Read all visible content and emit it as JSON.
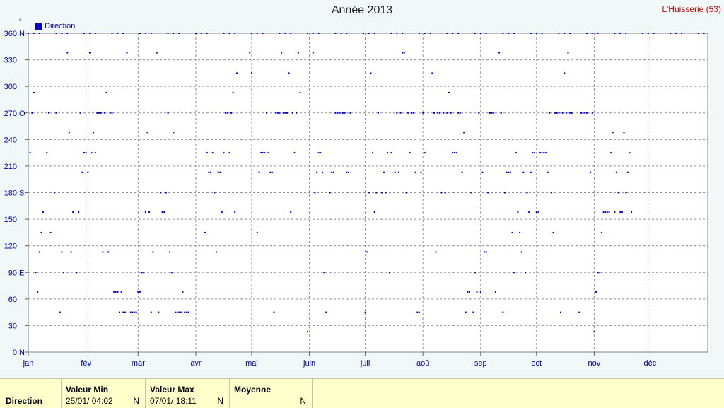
{
  "header": {
    "title": "Année 2013",
    "station": "L'Huisserie (53)",
    "unit_symbol": "°"
  },
  "legend": {
    "label": "Direction",
    "color": "#0000cc"
  },
  "footer": {
    "row_label": "Direction",
    "min": {
      "header": "Valeur Min",
      "date": "25/01/  04:02",
      "dir": "N"
    },
    "max": {
      "header": "Valeur Max",
      "date": "07/01/  18:11",
      "dir": "N"
    },
    "avg": {
      "header": "Moyenne",
      "dir": "N"
    }
  },
  "chart_data": {
    "type": "scatter",
    "title": "Année 2013",
    "series": [
      {
        "name": "Direction",
        "color": "#0000cc"
      }
    ],
    "ylim": [
      0,
      360
    ],
    "yticks": [
      {
        "value": 0,
        "label": "0",
        "dir": "N"
      },
      {
        "value": 30,
        "label": "30",
        "dir": ""
      },
      {
        "value": 60,
        "label": "60",
        "dir": ""
      },
      {
        "value": 90,
        "label": "90",
        "dir": "E"
      },
      {
        "value": 120,
        "label": "120",
        "dir": ""
      },
      {
        "value": 150,
        "label": "150",
        "dir": ""
      },
      {
        "value": 180,
        "label": "180",
        "dir": "S"
      },
      {
        "value": 210,
        "label": "210",
        "dir": ""
      },
      {
        "value": 240,
        "label": "240",
        "dir": ""
      },
      {
        "value": 270,
        "label": "270",
        "dir": "O"
      },
      {
        "value": 300,
        "label": "300",
        "dir": ""
      },
      {
        "value": 330,
        "label": "330",
        "dir": ""
      },
      {
        "value": 360,
        "label": "360",
        "dir": "N"
      }
    ],
    "xlim": [
      0,
      365
    ],
    "months": [
      "jan",
      "fév",
      "mar",
      "avr",
      "mai",
      "juin",
      "juil",
      "aoû",
      "sep",
      "oct",
      "nov",
      "déc"
    ],
    "month_starts": [
      0,
      31,
      59,
      90,
      120,
      151,
      181,
      212,
      243,
      273,
      304,
      334
    ],
    "grid": true,
    "points": [
      [
        1,
        225
      ],
      [
        2,
        270
      ],
      [
        3,
        293
      ],
      [
        4,
        90
      ],
      [
        5,
        68
      ],
      [
        6,
        113
      ],
      [
        7,
        135
      ],
      [
        8,
        158
      ],
      [
        10,
        225
      ],
      [
        11,
        270
      ],
      [
        12,
        135
      ],
      [
        14,
        180
      ],
      [
        15,
        270
      ],
      [
        17,
        45
      ],
      [
        18,
        113
      ],
      [
        19,
        90
      ],
      [
        21,
        338
      ],
      [
        22,
        248
      ],
      [
        23,
        113
      ],
      [
        24,
        158
      ],
      [
        26,
        90
      ],
      [
        27,
        158
      ],
      [
        28,
        270
      ],
      [
        29,
        203
      ],
      [
        30,
        225
      ],
      [
        31,
        225
      ],
      [
        32,
        203
      ],
      [
        33,
        338
      ],
      [
        34,
        225
      ],
      [
        35,
        248
      ],
      [
        36,
        225
      ],
      [
        37,
        270
      ],
      [
        38,
        270
      ],
      [
        39,
        270
      ],
      [
        40,
        113
      ],
      [
        41,
        270
      ],
      [
        42,
        293
      ],
      [
        43,
        113
      ],
      [
        44,
        270
      ],
      [
        45,
        270
      ],
      [
        46,
        68
      ],
      [
        47,
        68
      ],
      [
        48,
        68
      ],
      [
        49,
        45
      ],
      [
        50,
        68
      ],
      [
        51,
        45
      ],
      [
        52,
        45
      ],
      [
        53,
        338
      ],
      [
        55,
        45
      ],
      [
        56,
        45
      ],
      [
        57,
        45
      ],
      [
        58,
        45
      ],
      [
        59,
        68
      ],
      [
        60,
        68
      ],
      [
        61,
        90
      ],
      [
        62,
        90
      ],
      [
        63,
        158
      ],
      [
        64,
        248
      ],
      [
        65,
        158
      ],
      [
        66,
        45
      ],
      [
        67,
        113
      ],
      [
        69,
        338
      ],
      [
        70,
        45
      ],
      [
        71,
        180
      ],
      [
        72,
        158
      ],
      [
        73,
        158
      ],
      [
        74,
        180
      ],
      [
        75,
        270
      ],
      [
        76,
        113
      ],
      [
        77,
        90
      ],
      [
        78,
        248
      ],
      [
        79,
        45
      ],
      [
        80,
        45
      ],
      [
        81,
        45
      ],
      [
        82,
        45
      ],
      [
        83,
        68
      ],
      [
        84,
        45
      ],
      [
        85,
        45
      ],
      [
        86,
        45
      ],
      [
        95,
        135
      ],
      [
        96,
        225
      ],
      [
        97,
        203
      ],
      [
        98,
        203
      ],
      [
        99,
        225
      ],
      [
        100,
        180
      ],
      [
        101,
        113
      ],
      [
        102,
        203
      ],
      [
        103,
        203
      ],
      [
        104,
        158
      ],
      [
        105,
        225
      ],
      [
        106,
        270
      ],
      [
        107,
        270
      ],
      [
        108,
        225
      ],
      [
        109,
        270
      ],
      [
        110,
        293
      ],
      [
        111,
        158
      ],
      [
        112,
        315
      ],
      [
        119,
        338
      ],
      [
        120,
        315
      ],
      [
        123,
        135
      ],
      [
        124,
        203
      ],
      [
        125,
        225
      ],
      [
        126,
        225
      ],
      [
        127,
        225
      ],
      [
        128,
        270
      ],
      [
        129,
        225
      ],
      [
        130,
        203
      ],
      [
        131,
        203
      ],
      [
        132,
        45
      ],
      [
        133,
        270
      ],
      [
        134,
        270
      ],
      [
        135,
        270
      ],
      [
        136,
        338
      ],
      [
        137,
        270
      ],
      [
        138,
        270
      ],
      [
        139,
        270
      ],
      [
        140,
        315
      ],
      [
        141,
        158
      ],
      [
        142,
        270
      ],
      [
        143,
        225
      ],
      [
        144,
        270
      ],
      [
        145,
        338
      ],
      [
        146,
        293
      ],
      [
        150,
        23
      ],
      [
        153,
        338
      ],
      [
        154,
        180
      ],
      [
        155,
        203
      ],
      [
        156,
        225
      ],
      [
        157,
        225
      ],
      [
        158,
        203
      ],
      [
        159,
        90
      ],
      [
        160,
        45
      ],
      [
        162,
        180
      ],
      [
        163,
        203
      ],
      [
        164,
        203
      ],
      [
        165,
        270
      ],
      [
        166,
        270
      ],
      [
        167,
        270
      ],
      [
        168,
        270
      ],
      [
        169,
        270
      ],
      [
        170,
        270
      ],
      [
        171,
        203
      ],
      [
        172,
        203
      ],
      [
        173,
        270
      ],
      [
        181,
        45
      ],
      [
        182,
        113
      ],
      [
        183,
        180
      ],
      [
        184,
        315
      ],
      [
        185,
        225
      ],
      [
        186,
        158
      ],
      [
        187,
        180
      ],
      [
        188,
        270
      ],
      [
        190,
        180
      ],
      [
        191,
        203
      ],
      [
        192,
        180
      ],
      [
        193,
        225
      ],
      [
        194,
        90
      ],
      [
        195,
        225
      ],
      [
        197,
        203
      ],
      [
        198,
        270
      ],
      [
        199,
        203
      ],
      [
        200,
        270
      ],
      [
        201,
        338
      ],
      [
        202,
        338
      ],
      [
        203,
        180
      ],
      [
        204,
        270
      ],
      [
        205,
        225
      ],
      [
        206,
        270
      ],
      [
        207,
        270
      ],
      [
        208,
        203
      ],
      [
        209,
        45
      ],
      [
        210,
        45
      ],
      [
        211,
        203
      ],
      [
        212,
        270
      ],
      [
        213,
        225
      ],
      [
        217,
        315
      ],
      [
        218,
        270
      ],
      [
        219,
        113
      ],
      [
        220,
        270
      ],
      [
        221,
        270
      ],
      [
        222,
        180
      ],
      [
        223,
        270
      ],
      [
        224,
        180
      ],
      [
        225,
        270
      ],
      [
        226,
        293
      ],
      [
        227,
        270
      ],
      [
        228,
        225
      ],
      [
        229,
        225
      ],
      [
        230,
        225
      ],
      [
        231,
        270
      ],
      [
        232,
        270
      ],
      [
        233,
        203
      ],
      [
        234,
        248
      ],
      [
        235,
        45
      ],
      [
        236,
        68
      ],
      [
        237,
        68
      ],
      [
        238,
        180
      ],
      [
        239,
        45
      ],
      [
        240,
        90
      ],
      [
        241,
        68
      ],
      [
        242,
        270
      ],
      [
        243,
        68
      ],
      [
        244,
        203
      ],
      [
        245,
        113
      ],
      [
        246,
        113
      ],
      [
        247,
        180
      ],
      [
        248,
        270
      ],
      [
        249,
        270
      ],
      [
        250,
        270
      ],
      [
        251,
        68
      ],
      [
        253,
        338
      ],
      [
        254,
        270
      ],
      [
        255,
        45
      ],
      [
        256,
        180
      ],
      [
        257,
        203
      ],
      [
        258,
        203
      ],
      [
        259,
        203
      ],
      [
        260,
        135
      ],
      [
        261,
        90
      ],
      [
        262,
        225
      ],
      [
        263,
        158
      ],
      [
        264,
        135
      ],
      [
        265,
        113
      ],
      [
        266,
        203
      ],
      [
        267,
        90
      ],
      [
        268,
        180
      ],
      [
        269,
        158
      ],
      [
        270,
        203
      ],
      [
        271,
        225
      ],
      [
        272,
        225
      ],
      [
        273,
        158
      ],
      [
        274,
        158
      ],
      [
        275,
        225
      ],
      [
        276,
        225
      ],
      [
        277,
        225
      ],
      [
        278,
        225
      ],
      [
        279,
        203
      ],
      [
        280,
        270
      ],
      [
        281,
        180
      ],
      [
        282,
        135
      ],
      [
        283,
        270
      ],
      [
        284,
        270
      ],
      [
        285,
        270
      ],
      [
        286,
        45
      ],
      [
        287,
        270
      ],
      [
        288,
        315
      ],
      [
        289,
        270
      ],
      [
        290,
        338
      ],
      [
        291,
        270
      ],
      [
        292,
        270
      ],
      [
        296,
        45
      ],
      [
        297,
        270
      ],
      [
        298,
        270
      ],
      [
        299,
        270
      ],
      [
        300,
        270
      ],
      [
        302,
        203
      ],
      [
        303,
        270
      ],
      [
        304,
        23
      ],
      [
        305,
        68
      ],
      [
        306,
        90
      ],
      [
        307,
        90
      ],
      [
        308,
        135
      ],
      [
        309,
        158
      ],
      [
        310,
        158
      ],
      [
        311,
        158
      ],
      [
        312,
        158
      ],
      [
        313,
        225
      ],
      [
        314,
        248
      ],
      [
        315,
        158
      ],
      [
        316,
        203
      ],
      [
        317,
        180
      ],
      [
        318,
        158
      ],
      [
        319,
        158
      ],
      [
        320,
        248
      ],
      [
        321,
        180
      ],
      [
        322,
        203
      ],
      [
        323,
        225
      ],
      [
        324,
        158
      ]
    ]
  }
}
